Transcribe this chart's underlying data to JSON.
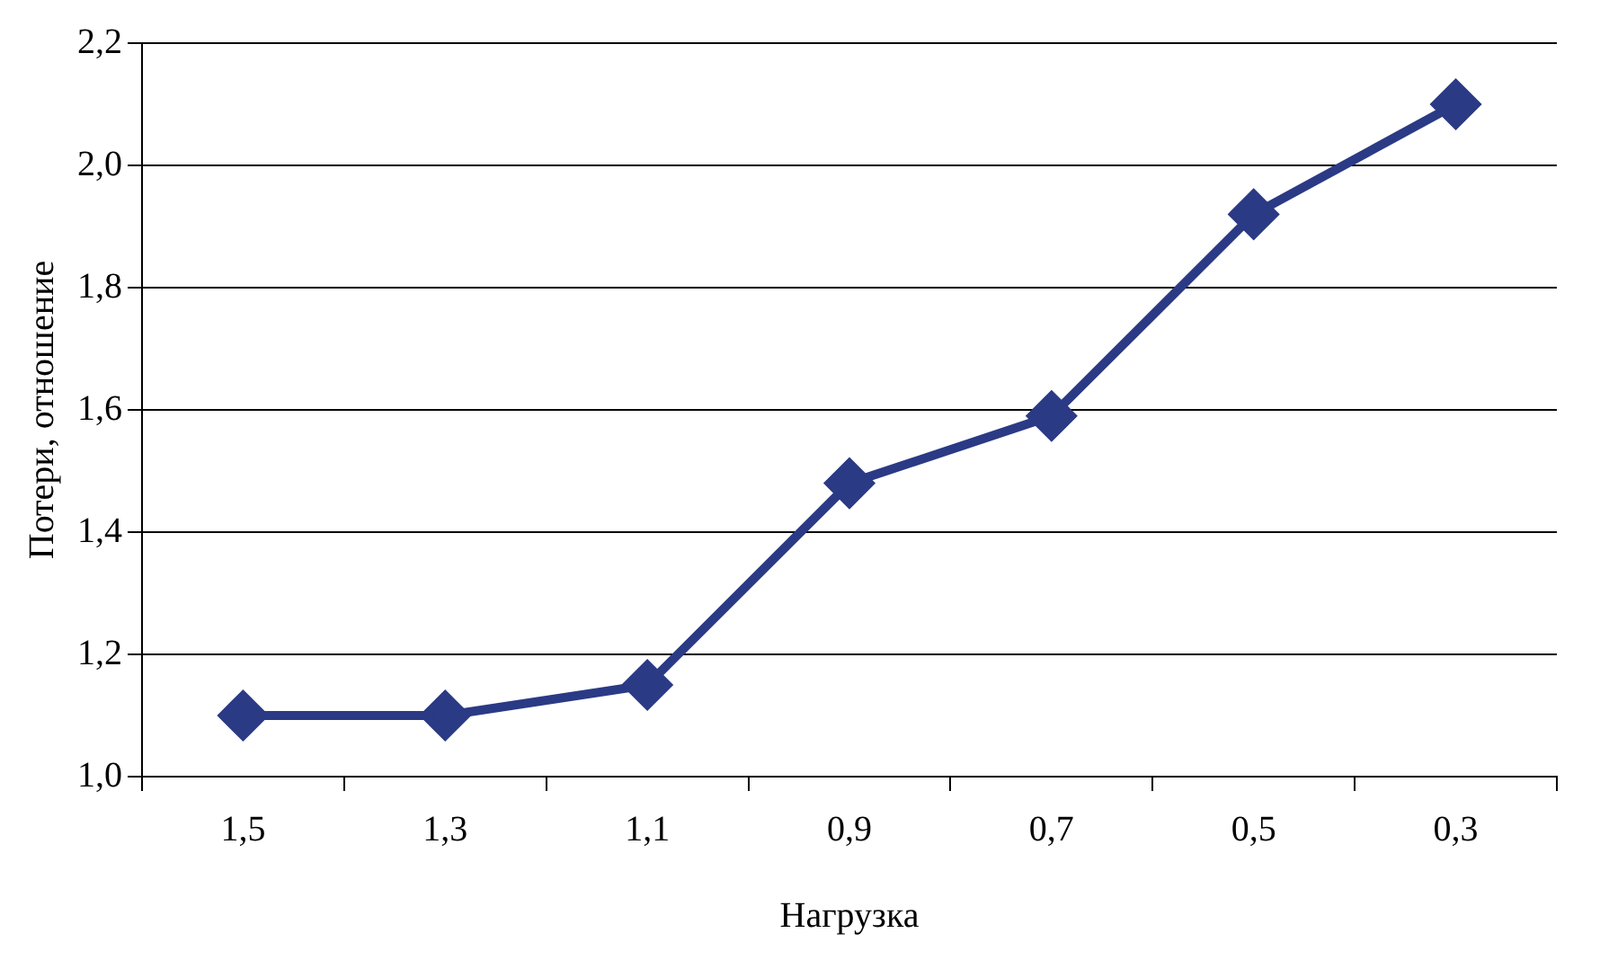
{
  "chart_data": {
    "type": "line",
    "xlabel": "Нагрузка",
    "ylabel": "Потери, отношение",
    "categories": [
      "1,5",
      "1,3",
      "1,1",
      "0,9",
      "0,7",
      "0,5",
      "0,3"
    ],
    "series": [
      {
        "color": "#2b3a85",
        "values": [
          1.1,
          1.1,
          1.15,
          1.48,
          1.59,
          1.92,
          2.1
        ]
      }
    ],
    "ylim": [
      1.0,
      2.2
    ],
    "yticks": [
      {
        "value": 1.0,
        "label": "1,0"
      },
      {
        "value": 1.2,
        "label": "1,2"
      },
      {
        "value": 1.4,
        "label": "1,4"
      },
      {
        "value": 1.6,
        "label": "1,6"
      },
      {
        "value": 1.8,
        "label": "1,8"
      },
      {
        "value": 2.0,
        "label": "2,0"
      },
      {
        "value": 2.2,
        "label": "2,2"
      }
    ],
    "grid": "y",
    "legend": false,
    "marker": "diamond",
    "line_style": "solid"
  }
}
